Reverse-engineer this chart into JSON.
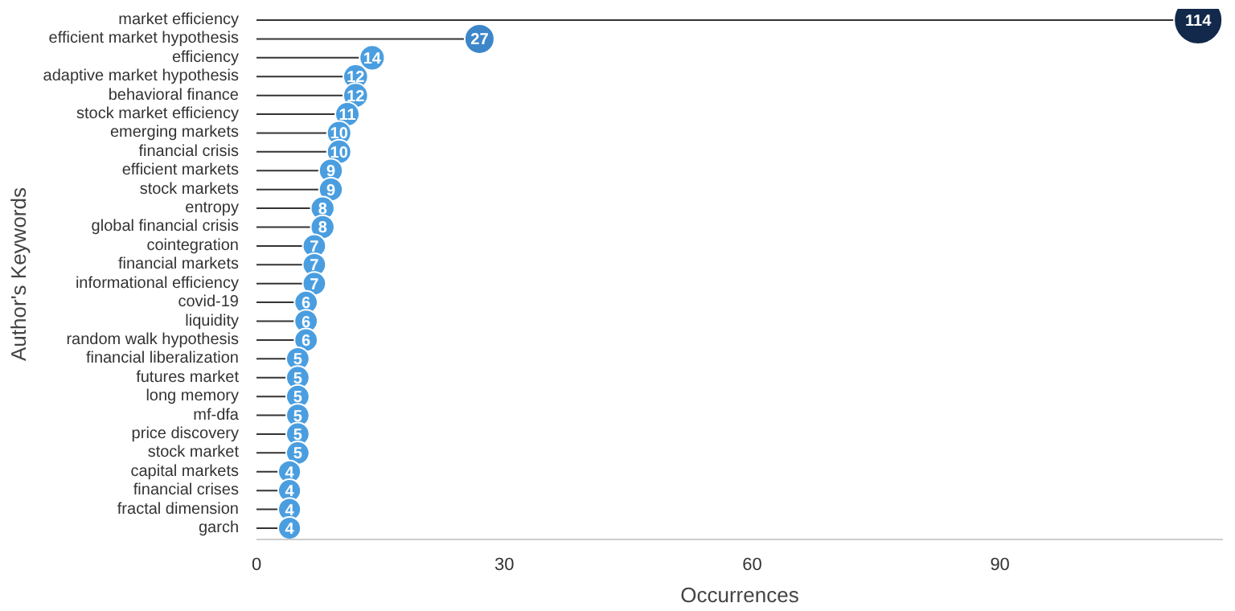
{
  "chart_data": {
    "type": "lollipop",
    "orientation": "horizontal",
    "xlabel": "Occurrences",
    "ylabel": "Author's Keywords",
    "categories": [
      "market efficiency",
      "efficient market hypothesis",
      "efficiency",
      "adaptive market hypothesis",
      "behavioral finance",
      "stock market efficiency",
      "emerging markets",
      "financial crisis",
      "efficient markets",
      "stock markets",
      "entropy",
      "global financial crisis",
      "cointegration",
      "financial markets",
      "informational efficiency",
      "covid-19",
      "liquidity",
      "random walk hypothesis",
      "financial liberalization",
      "futures market",
      "long memory",
      "mf-dfa",
      "price discovery",
      "stock market",
      "capital markets",
      "financial crises",
      "fractal dimension",
      "garch"
    ],
    "values": [
      114,
      27,
      14,
      12,
      12,
      11,
      10,
      10,
      9,
      9,
      8,
      8,
      7,
      7,
      7,
      6,
      6,
      6,
      5,
      5,
      5,
      5,
      5,
      5,
      4,
      4,
      4,
      4
    ],
    "colors": [
      "#13294b",
      "#3d86c9",
      "#4a9ee0",
      "#4a9ee0",
      "#4a9ee0",
      "#4a9ee0",
      "#4a9ee0",
      "#4a9ee0",
      "#4a9ee0",
      "#4a9ee0",
      "#4a9ee0",
      "#4a9ee0",
      "#4a9ee0",
      "#4a9ee0",
      "#4a9ee0",
      "#4a9ee0",
      "#4a9ee0",
      "#4a9ee0",
      "#4a9ee0",
      "#4a9ee0",
      "#4a9ee0",
      "#4a9ee0",
      "#4a9ee0",
      "#4a9ee0",
      "#4a9ee0",
      "#4a9ee0",
      "#4a9ee0",
      "#4a9ee0"
    ],
    "sizes": [
      1,
      0.38,
      0.27,
      0.26,
      0.26,
      0.25,
      0.25,
      0.25,
      0.24,
      0.24,
      0.24,
      0.24,
      0.23,
      0.23,
      0.23,
      0.23,
      0.23,
      0.23,
      0.23,
      0.23,
      0.23,
      0.23,
      0.23,
      0.23,
      0.22,
      0.22,
      0.22,
      0.22
    ],
    "xlim": [
      0,
      117
    ],
    "xticks": [
      0,
      30,
      60,
      90
    ],
    "data_labels": true,
    "grid": false
  }
}
